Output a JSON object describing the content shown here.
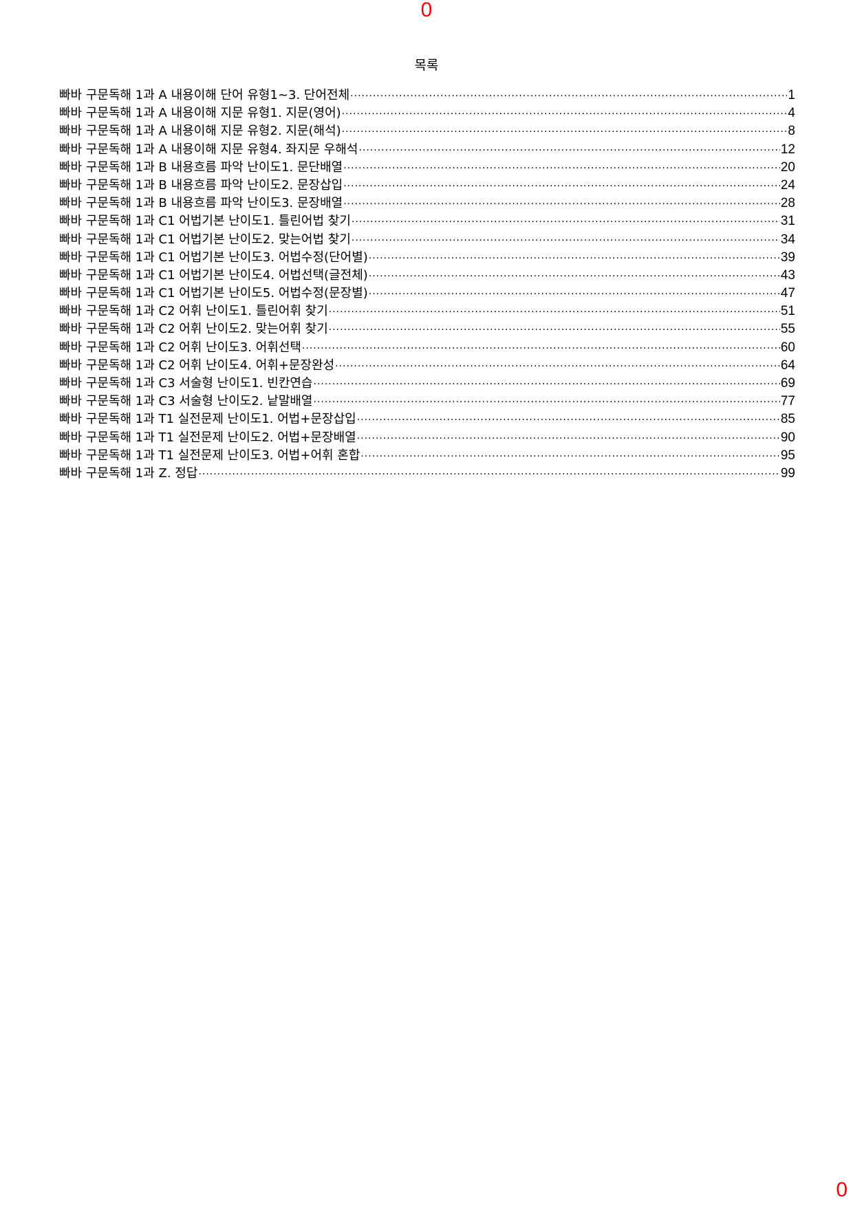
{
  "page_markers": {
    "top": "0",
    "bottom": "0"
  },
  "toc": {
    "title": "목록",
    "entries": [
      {
        "label": "빠바 구문독해 1과 A 내용이해 단어 유형1~3. 단어전체",
        "page": "1"
      },
      {
        "label": "빠바 구문독해 1과 A 내용이해 지문 유형1. 지문(영어)",
        "page": "4"
      },
      {
        "label": "빠바 구문독해 1과 A 내용이해 지문 유형2. 지문(해석)",
        "page": "8"
      },
      {
        "label": "빠바 구문독해 1과 A 내용이해 지문 유형4. 좌지문 우해석",
        "page": "12"
      },
      {
        "label": "빠바 구문독해 1과 B 내용흐름 파악 난이도1. 문단배열",
        "page": "20"
      },
      {
        "label": "빠바 구문독해 1과 B 내용흐름 파악 난이도2. 문장삽입",
        "page": "24"
      },
      {
        "label": "빠바 구문독해 1과 B 내용흐름 파악 난이도3. 문장배열",
        "page": "28"
      },
      {
        "label": "빠바 구문독해 1과 C1 어법기본 난이도1. 틀린어법 찾기",
        "page": "31"
      },
      {
        "label": "빠바 구문독해 1과 C1 어법기본 난이도2. 맞는어법 찾기",
        "page": "34"
      },
      {
        "label": "빠바 구문독해 1과 C1 어법기본 난이도3. 어법수정(단어별)",
        "page": "39"
      },
      {
        "label": "빠바 구문독해 1과 C1 어법기본 난이도4. 어법선택(글전체)",
        "page": "43"
      },
      {
        "label": "빠바 구문독해 1과 C1 어법기본 난이도5. 어법수정(문장별)",
        "page": "47"
      },
      {
        "label": "빠바 구문독해 1과 C2 어휘 난이도1. 틀린어휘 찾기",
        "page": "51"
      },
      {
        "label": "빠바 구문독해 1과 C2 어휘 난이도2. 맞는어휘 찾기",
        "page": "55"
      },
      {
        "label": "빠바 구문독해 1과 C2 어휘 난이도3. 어휘선택",
        "page": "60"
      },
      {
        "label": "빠바 구문독해 1과 C2 어휘 난이도4. 어휘+문장완성",
        "page": "64"
      },
      {
        "label": "빠바 구문독해 1과 C3 서술형 난이도1. 빈칸연습",
        "page": "69"
      },
      {
        "label": "빠바 구문독해 1과 C3 서술형 난이도2. 낱말배열",
        "page": "77"
      },
      {
        "label": "빠바 구문독해 1과 T1 실전문제 난이도1. 어법+문장삽입",
        "page": "85"
      },
      {
        "label": "빠바 구문독해 1과 T1 실전문제 난이도2. 어법+문장배열",
        "page": "90"
      },
      {
        "label": "빠바 구문독해 1과 T1 실전문제 난이도3. 어법+어휘 혼합",
        "page": "95"
      },
      {
        "label": "빠바 구문독해 1과 Z. 정답",
        "page": "99"
      }
    ]
  },
  "colors": {
    "page_marker": "#ff0000",
    "text": "#000000"
  }
}
